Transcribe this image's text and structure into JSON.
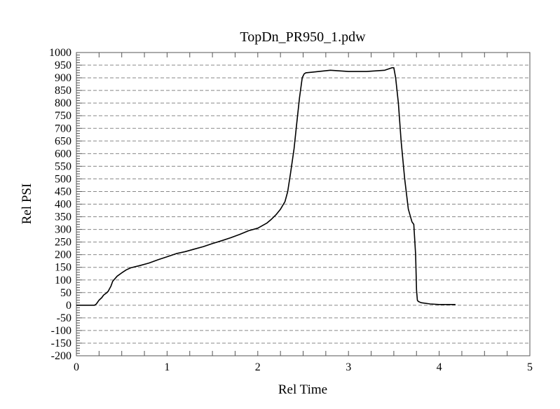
{
  "chart_data": {
    "type": "line",
    "title": "TopDn_PR950_1.pdw",
    "xlabel": "Rel Time",
    "ylabel": "Rel PSI",
    "xlim": [
      0,
      5
    ],
    "ylim": [
      -200,
      1000
    ],
    "x_ticks": [
      "0",
      "1",
      "2",
      "3",
      "4",
      "5"
    ],
    "y_ticks": [
      "1000",
      "950",
      "900",
      "850",
      "800",
      "750",
      "700",
      "650",
      "600",
      "550",
      "500",
      "450",
      "400",
      "350",
      "300",
      "250",
      "200",
      "150",
      "100",
      "50",
      "0",
      "-50",
      "-100",
      "-150",
      "-200"
    ],
    "grid": "horizontal dashed at every 50",
    "line_color": "#000000",
    "series": [
      {
        "x": [
          0,
          0.1,
          0.2,
          0.22,
          0.25,
          0.28,
          0.3,
          0.33,
          0.35,
          0.38,
          0.4,
          0.45,
          0.5,
          0.55,
          0.6,
          0.7,
          0.8,
          0.9,
          1.0,
          1.1,
          1.2,
          1.3,
          1.4,
          1.5,
          1.6,
          1.7,
          1.8,
          1.9,
          2.0,
          2.1,
          2.15,
          2.2,
          2.25,
          2.3,
          2.33,
          2.36,
          2.4,
          2.43,
          2.46,
          2.49,
          2.51,
          2.53,
          2.6,
          2.8,
          3.0,
          3.2,
          3.4,
          3.48,
          3.5,
          3.52,
          3.55,
          3.58,
          3.62,
          3.66,
          3.7,
          3.72,
          3.74,
          3.75,
          3.76,
          3.77,
          3.8,
          3.9,
          4.0,
          4.1,
          4.18
        ],
        "y": [
          0,
          0,
          0,
          5,
          20,
          30,
          40,
          48,
          55,
          75,
          95,
          115,
          128,
          140,
          148,
          157,
          167,
          180,
          192,
          204,
          212,
          222,
          232,
          244,
          255,
          267,
          280,
          295,
          305,
          325,
          340,
          358,
          380,
          410,
          450,
          520,
          620,
          720,
          820,
          900,
          915,
          920,
          922,
          930,
          925,
          925,
          930,
          940,
          940,
          900,
          800,
          650,
          500,
          380,
          330,
          320,
          200,
          60,
          20,
          15,
          10,
          5,
          3,
          3,
          3
        ]
      }
    ]
  }
}
